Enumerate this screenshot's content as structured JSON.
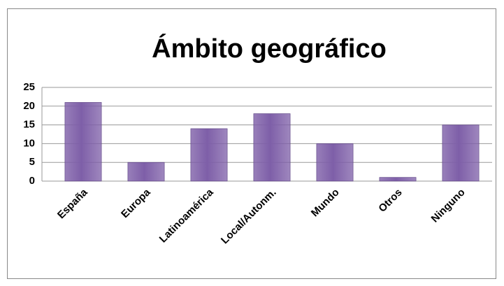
{
  "chart_data": {
    "type": "bar",
    "title": "Ámbito geográfico",
    "categories": [
      "España",
      "Europa",
      "Latinoamérica",
      "Local/Autonm.",
      "Mundo",
      "Otros",
      "Ninguno"
    ],
    "values": [
      21,
      5,
      14,
      18,
      10,
      1,
      15
    ],
    "color": "#7e5fa8",
    "ylim": [
      0,
      25
    ],
    "yticks": [
      0,
      5,
      10,
      15,
      20,
      25
    ],
    "grid": true
  }
}
